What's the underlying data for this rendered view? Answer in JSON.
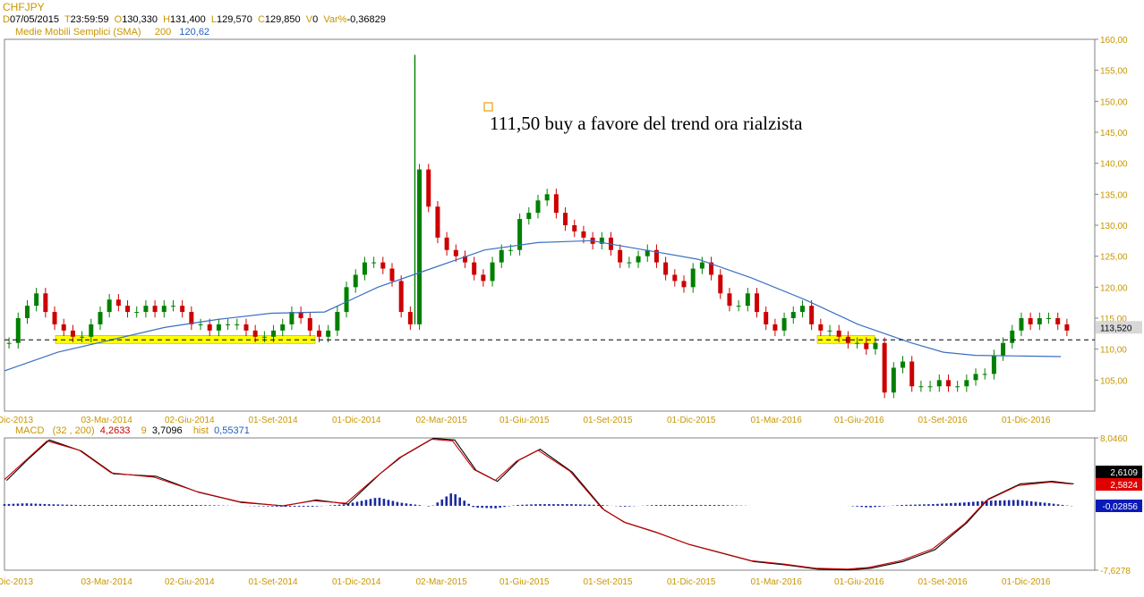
{
  "header": {
    "symbol": "CHFJPY",
    "date_label": "D",
    "date_value": "07/05/2015",
    "time_label": "T",
    "time_value": "23:59:59",
    "open_label": "O",
    "open_value": "130,330",
    "high_label": "H",
    "high_value": "131,400",
    "low_label": "L",
    "low_value": "129,570",
    "close_label": "C",
    "close_value": "129,850",
    "volume_label": "V",
    "volume_value": "0",
    "var_label": "Var%",
    "var_value": "-0,36829",
    "sma_label": "Medie Mobili Semplici (SMA)",
    "sma_period": "200",
    "sma_value": "120,62"
  },
  "macd_header": {
    "name": "MACD",
    "params": "(32 , 200)",
    "macd_value": "4,2633",
    "signal_period": "9",
    "signal_value": "3,7096",
    "hist_label": "hist",
    "hist_value": "0,55371"
  },
  "annotation": {
    "text": "111,50 buy a favore del trend ora rialzista"
  },
  "colors": {
    "bull": "#008000",
    "bear": "#cc0000",
    "sma": "#3a6fc4",
    "highlight": "#ffff00",
    "macd_line": "#000000",
    "signal_line": "#cc0000",
    "hist": "#1a2aa0",
    "axis_text": "#c89600"
  },
  "chart_data": [
    {
      "type": "candlestick",
      "title": "CHFJPY",
      "ylim": [
        100,
        160
      ],
      "yticks": [
        "105,00",
        "110,00",
        "115,00",
        "120,00",
        "125,00",
        "130,00",
        "135,00",
        "140,00",
        "145,00",
        "150,00",
        "155,00",
        "160,00"
      ],
      "xticks": [
        "Dic-2013",
        "03-Mar-2014",
        "02-Giu-2014",
        "01-Set-2014",
        "01-Dic-2014",
        "02-Mar-2015",
        "01-Giu-2015",
        "01-Set-2015",
        "01-Dic-2015",
        "01-Mar-2016",
        "01-Giu-2016",
        "01-Set-2016",
        "01-Dic-2016"
      ],
      "last_price_label": "113,520",
      "last_price": 113.52,
      "support_level": 111.5,
      "close_series": [
        111,
        115,
        117,
        119,
        116,
        114,
        113,
        112,
        112,
        114,
        116,
        118,
        117,
        116,
        116,
        117,
        116,
        117,
        117,
        116,
        114,
        114,
        113,
        114,
        114,
        114,
        113,
        112,
        112,
        113,
        114,
        116,
        115,
        113,
        112,
        113,
        116,
        120,
        122,
        124,
        124,
        123,
        121,
        116,
        114,
        139,
        133,
        128,
        126,
        125,
        124,
        122,
        121,
        124,
        126,
        126,
        131,
        132,
        134,
        135,
        132,
        130,
        129,
        128,
        127,
        128,
        126,
        124,
        124,
        125,
        126,
        124,
        122,
        121,
        120,
        123,
        124,
        122,
        119,
        117,
        117,
        119,
        116,
        114,
        113,
        115,
        116,
        117,
        114,
        113,
        113,
        112,
        111,
        111,
        110,
        111,
        103,
        107,
        108,
        104,
        104,
        104,
        105,
        104,
        104,
        105,
        106,
        106,
        109,
        111,
        113,
        115,
        114,
        115,
        115,
        114,
        113
      ]
    },
    {
      "type": "line",
      "name": "SMA 200",
      "ylim": [
        100,
        160
      ],
      "x_frac": [
        0.0,
        0.05,
        0.1,
        0.15,
        0.2,
        0.25,
        0.3,
        0.35,
        0.4,
        0.45,
        0.5,
        0.55,
        0.6,
        0.65,
        0.7,
        0.75,
        0.8,
        0.85,
        0.88,
        0.91,
        0.95,
        0.99
      ],
      "values": [
        106.5,
        109.5,
        111.5,
        113.5,
        114.8,
        115.8,
        116,
        120,
        123,
        126,
        127.2,
        127.5,
        126,
        124.5,
        121.5,
        118,
        114,
        111,
        109.5,
        109,
        108.9,
        108.8
      ]
    },
    {
      "type": "line",
      "name": "MACD",
      "ylim": [
        -7.6278,
        8.046
      ],
      "yticks": [
        "8,0460",
        "-7,6278"
      ],
      "last_macd_label": "2,6109",
      "last_signal_label": "2,5824",
      "last_hist_label": "-0,02856",
      "x_frac": [
        0.0,
        0.02,
        0.04,
        0.07,
        0.1,
        0.14,
        0.18,
        0.22,
        0.26,
        0.29,
        0.32,
        0.35,
        0.37,
        0.4,
        0.42,
        0.44,
        0.46,
        0.48,
        0.5,
        0.53,
        0.56,
        0.58,
        0.61,
        0.64,
        0.67,
        0.7,
        0.73,
        0.76,
        0.79,
        0.81,
        0.84,
        0.87,
        0.9,
        0.92,
        0.95,
        0.98,
        1.0
      ],
      "values": [
        3.0,
        5.5,
        7.8,
        6.5,
        3.8,
        3.5,
        1.6,
        0.4,
        0.0,
        0.7,
        0.2,
        3.8,
        5.8,
        8.0,
        7.8,
        4.2,
        2.9,
        5.4,
        6.7,
        4.0,
        -0.5,
        -2.0,
        -3.2,
        -4.6,
        -5.6,
        -6.6,
        -7.0,
        -7.5,
        -7.6,
        -7.4,
        -6.6,
        -5.2,
        -2.0,
        0.8,
        2.6,
        2.9,
        2.6
      ],
      "signal_values": [
        3.1,
        5.4,
        7.7,
        6.6,
        3.9,
        3.4,
        1.7,
        0.5,
        0.0,
        0.6,
        0.3,
        3.6,
        5.7,
        7.9,
        7.7,
        4.3,
        3.0,
        5.3,
        6.6,
        4.1,
        -0.3,
        -1.9,
        -3.1,
        -4.5,
        -5.5,
        -6.5,
        -6.9,
        -7.4,
        -7.5,
        -7.3,
        -6.5,
        -5.1,
        -2.1,
        0.6,
        2.4,
        2.8,
        2.58
      ],
      "hist_values": [
        0.2,
        0.3,
        0.2,
        0.1,
        0.1,
        0.1,
        0.1,
        0.0,
        -0.1,
        -0.1,
        0.2,
        1.0,
        0.4,
        -0.1,
        1.6,
        -0.2,
        -0.3,
        0.1,
        0.2,
        0.2,
        0.1,
        -0.1,
        0.1,
        0.1,
        0.1,
        0.0,
        0.0,
        0.0,
        0.0,
        -0.2,
        0.1,
        0.2,
        0.4,
        0.6,
        0.7,
        0.3,
        -0.03
      ]
    }
  ]
}
